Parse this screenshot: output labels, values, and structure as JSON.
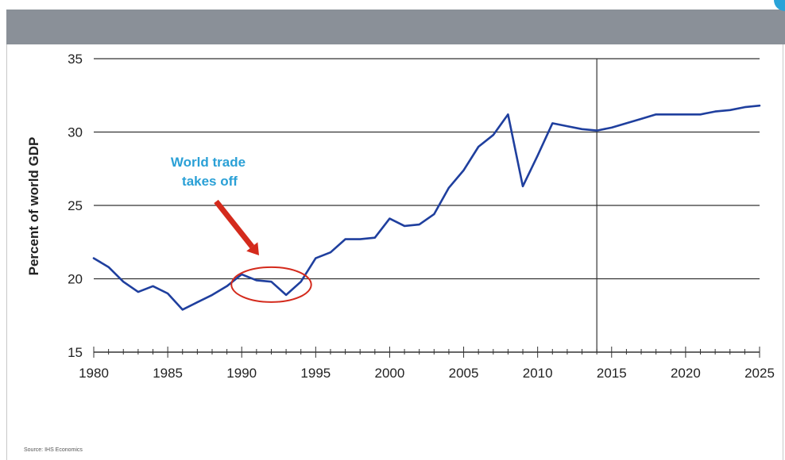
{
  "colors": {
    "header_band": "#8a9098",
    "series_line": "#1f3f9e",
    "annotation_text": "#2aa0d6",
    "arrow": "#d42a1c",
    "circle": "#d42a1c",
    "gridline": "#333333",
    "accent": "#29a3d8"
  },
  "source": "Source: IHS Economics",
  "chart_data": {
    "type": "line",
    "ylabel": "Percent of world GDP",
    "xlim": [
      1980,
      2025
    ],
    "ylim": [
      15,
      35
    ],
    "y_ticks": [
      15,
      20,
      25,
      30,
      35
    ],
    "x_ticks": [
      1980,
      1985,
      1990,
      1995,
      2000,
      2005,
      2010,
      2015,
      2020,
      2025
    ],
    "grid": "horizontal",
    "vertical_marker_year": 2014,
    "annotation": {
      "line1": "World trade",
      "line2": "takes off",
      "circled_years": [
        1990,
        1994
      ],
      "arrow": true
    },
    "series": [
      {
        "x": [
          1980,
          1981,
          1982,
          1983,
          1984,
          1985,
          1986,
          1987,
          1988,
          1989,
          1990,
          1991,
          1992,
          1993,
          1994,
          1995,
          1996,
          1997,
          1998,
          1999,
          2000,
          2001,
          2002,
          2003,
          2004,
          2005,
          2006,
          2007,
          2008,
          2009,
          2010,
          2011,
          2012,
          2013,
          2014,
          2015,
          2016,
          2017,
          2018,
          2019,
          2020,
          2021,
          2022,
          2023,
          2024,
          2025
        ],
        "values": [
          21.4,
          20.8,
          19.8,
          19.1,
          19.5,
          19.0,
          17.9,
          18.4,
          18.9,
          19.5,
          20.3,
          19.9,
          19.8,
          18.9,
          19.8,
          21.4,
          21.8,
          22.7,
          22.7,
          22.8,
          24.1,
          23.6,
          23.7,
          24.4,
          26.2,
          27.4,
          29.0,
          29.8,
          31.2,
          26.3,
          28.4,
          30.6,
          30.4,
          30.2,
          30.1,
          30.3,
          30.6,
          30.9,
          31.2,
          31.2,
          31.2,
          31.2,
          31.4,
          31.5,
          31.7,
          31.8
        ]
      }
    ]
  }
}
